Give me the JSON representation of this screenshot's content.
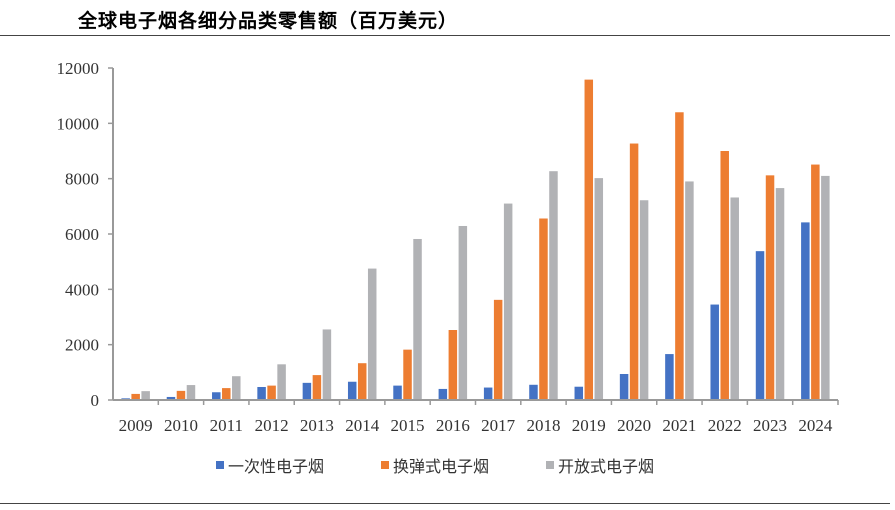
{
  "chart_data": {
    "type": "bar",
    "title": "全球电子烟各细分品类零售额（百万美元）",
    "xlabel": "",
    "ylabel": "",
    "ylim": [
      0,
      12000
    ],
    "yticks": [
      0,
      2000,
      4000,
      6000,
      8000,
      10000,
      12000
    ],
    "grid": false,
    "legend": "bottom",
    "categories": [
      "2009",
      "2010",
      "2011",
      "2012",
      "2013",
      "2014",
      "2015",
      "2016",
      "2017",
      "2018",
      "2019",
      "2020",
      "2021",
      "2022",
      "2023",
      "2024"
    ],
    "series": [
      {
        "name": "一次性电子烟",
        "color": "#4472c4",
        "values": [
          60,
          110,
          280,
          470,
          620,
          660,
          520,
          400,
          450,
          550,
          480,
          940,
          1660,
          3450,
          5380,
          6420
        ]
      },
      {
        "name": "换弹式电子烟",
        "color": "#ed7d31",
        "values": [
          220,
          330,
          430,
          520,
          900,
          1330,
          1820,
          2530,
          3620,
          6560,
          11580,
          9270,
          10400,
          9000,
          8120,
          8510
        ]
      },
      {
        "name": "开放式电子烟",
        "color": "#b1b2b5",
        "values": [
          320,
          540,
          860,
          1290,
          2550,
          4750,
          5820,
          6290,
          7100,
          8270,
          8020,
          7220,
          7900,
          7320,
          7660,
          8100
        ]
      }
    ]
  }
}
